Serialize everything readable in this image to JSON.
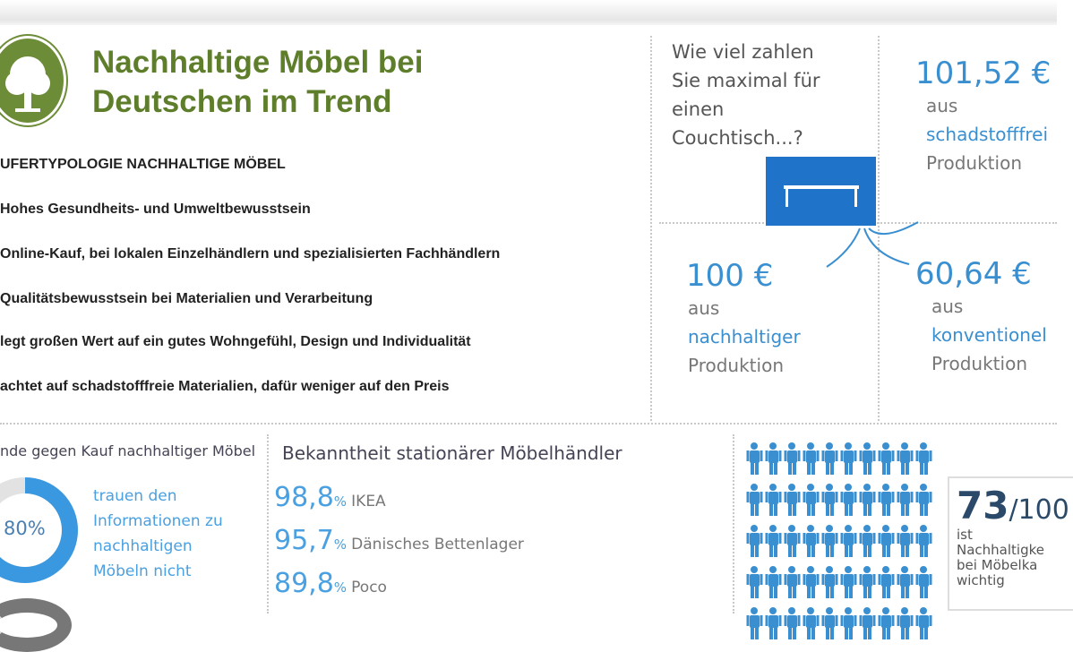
{
  "header": {
    "title_line1": "Nachhaltige Möbel bei",
    "title_line2": "Deutschen im Trend",
    "logo_icon": "tree-icon"
  },
  "typology": {
    "heading": "UFERTYPOLOGIE NACHHALTIGE MÖBEL",
    "items": [
      "Hohes Gesundheits- und Umweltbewusstsein",
      "Online-Kauf, bei lokalen Einzelhändlern und spezialisierten Fachhändlern",
      "Qualitätsbewusstsein bei  Materialien und Verarbeitung",
      "legt großen Wert auf ein gutes Wohngefühl, Design und Individualität",
      "achtet auf schadstofffreie Materialien, dafür  weniger auf den Preis"
    ]
  },
  "price": {
    "question": [
      "Wie viel zahlen",
      "Sie maximal für",
      "einen",
      "Couchtisch...?"
    ],
    "schadstofffrei": {
      "value": "101,52 €",
      "aus": "aus",
      "type": "schadstofffrei",
      "prod": "Produktion"
    },
    "nachhaltig": {
      "value": "100 €",
      "aus": "aus",
      "type": "nachhaltiger",
      "prod": "Produktion"
    },
    "konventionell": {
      "value": "60,64 €",
      "aus": "aus",
      "type": "konventionel",
      "prod": "Produktion"
    }
  },
  "reasons": {
    "heading": "nde gegen Kauf nachhaltiger Möbel",
    "percent": "80%",
    "percent_value": 80,
    "text": [
      "trauen den",
      "Informationen zu",
      "nachhaltigen",
      "Möbeln nicht"
    ]
  },
  "awareness": {
    "heading": "Bekanntheit stationärer Möbelhändler",
    "items": [
      {
        "value": "98,8",
        "unit": "%",
        "name": "IKEA"
      },
      {
        "value": "95,7",
        "unit": "%",
        "name": "Dänisches Bettenlager"
      },
      {
        "value": "89,8",
        "unit": "%",
        "name": "Poco"
      }
    ]
  },
  "importance": {
    "number": "73",
    "total": "/100",
    "lines": [
      "ist",
      "Nachhaltigke",
      "bei Möbelka",
      "wichtig"
    ]
  },
  "colors": {
    "green": "#5e7e2b",
    "blue": "#3a8fd0",
    "dark_blue": "#2b4a6a"
  }
}
